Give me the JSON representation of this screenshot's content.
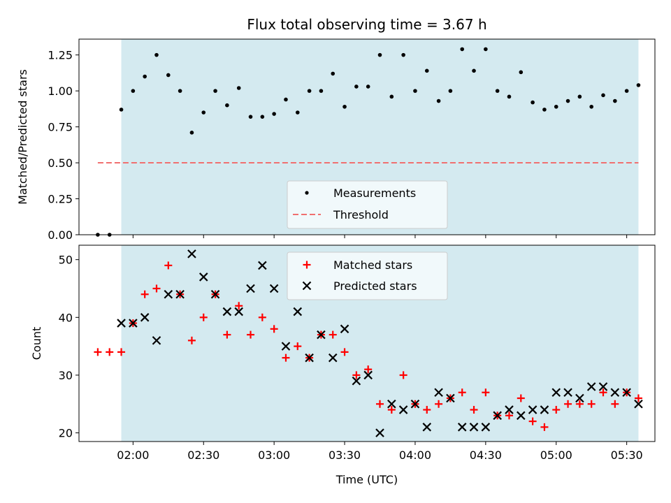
{
  "chart_data": [
    {
      "type": "scatter",
      "title": "Flux total observing time = 3.67 h",
      "xlabel": "",
      "ylabel": "Matched/Predicted stars",
      "xlim": [
        "01:37",
        "05:42"
      ],
      "ylim": [
        0,
        1.36
      ],
      "yticks": [
        0.0,
        0.25,
        0.5,
        0.75,
        1.0,
        1.25
      ],
      "ytick_labels": [
        "0.00",
        "0.25",
        "0.50",
        "0.75",
        "1.00",
        "1.25"
      ],
      "shaded_region": {
        "x_start": "01:55",
        "x_end": "05:35",
        "color": "#d4eaf0"
      },
      "legend": {
        "placement": "lower-center",
        "entries": [
          "Measurements",
          "Threshold"
        ]
      },
      "series": [
        {
          "name": "Measurements",
          "marker": "dot",
          "color": "#000000",
          "x": [
            "01:45",
            "01:50",
            "01:55",
            "02:00",
            "02:05",
            "02:10",
            "02:15",
            "02:20",
            "02:25",
            "02:30",
            "02:35",
            "02:40",
            "02:45",
            "02:50",
            "02:55",
            "03:00",
            "03:05",
            "03:10",
            "03:15",
            "03:20",
            "03:25",
            "03:30",
            "03:35",
            "03:40",
            "03:45",
            "03:50",
            "03:55",
            "04:00",
            "04:05",
            "04:10",
            "04:15",
            "04:20",
            "04:25",
            "04:30",
            "04:35",
            "04:40",
            "04:45",
            "04:50",
            "04:55",
            "05:00",
            "05:05",
            "05:10",
            "05:15",
            "05:20",
            "05:25",
            "05:30",
            "05:35"
          ],
          "y": [
            0.0,
            0.0,
            0.87,
            1.0,
            1.1,
            1.25,
            1.11,
            1.0,
            0.71,
            0.85,
            1.0,
            0.9,
            1.02,
            0.82,
            0.82,
            0.84,
            0.94,
            0.85,
            1.0,
            1.0,
            1.12,
            0.89,
            1.03,
            1.03,
            1.25,
            0.96,
            1.25,
            1.0,
            1.14,
            0.93,
            1.0,
            1.29,
            1.14,
            1.29,
            1.0,
            0.96,
            1.13,
            0.92,
            0.87,
            0.89,
            0.93,
            0.96,
            0.89,
            0.97,
            0.93,
            1.0,
            1.04
          ]
        },
        {
          "name": "Threshold",
          "type": "line",
          "style": "dashed",
          "color": "#f07070",
          "x": [
            "01:45",
            "05:35"
          ],
          "y": [
            0.5,
            0.5
          ]
        }
      ]
    },
    {
      "type": "scatter",
      "title": "",
      "xlabel": "Time (UTC)",
      "ylabel": "Count",
      "xlim": [
        "01:37",
        "05:42"
      ],
      "ylim": [
        18.5,
        52.5
      ],
      "yticks": [
        20,
        30,
        40,
        50
      ],
      "ytick_labels": [
        "20",
        "30",
        "40",
        "50"
      ],
      "xticks": [
        "02:00",
        "02:30",
        "03:00",
        "03:30",
        "04:00",
        "04:30",
        "05:00",
        "05:30"
      ],
      "shaded_region": {
        "x_start": "01:55",
        "x_end": "05:35",
        "color": "#d4eaf0"
      },
      "legend": {
        "placement": "upper-center",
        "entries": [
          "Matched stars",
          "Predicted stars"
        ]
      },
      "series": [
        {
          "name": "Matched stars",
          "marker": "plus",
          "color": "#ff0000",
          "x": [
            "01:45",
            "01:50",
            "01:55",
            "02:00",
            "02:05",
            "02:10",
            "02:15",
            "02:20",
            "02:25",
            "02:30",
            "02:35",
            "02:40",
            "02:45",
            "02:50",
            "02:55",
            "03:00",
            "03:05",
            "03:10",
            "03:15",
            "03:20",
            "03:25",
            "03:30",
            "03:35",
            "03:40",
            "03:45",
            "03:50",
            "03:55",
            "04:00",
            "04:05",
            "04:10",
            "04:15",
            "04:20",
            "04:25",
            "04:30",
            "04:35",
            "04:40",
            "04:45",
            "04:50",
            "04:55",
            "05:00",
            "05:05",
            "05:10",
            "05:15",
            "05:20",
            "05:25",
            "05:30",
            "05:35"
          ],
          "y": [
            34,
            34,
            34,
            39,
            44,
            45,
            49,
            44,
            36,
            40,
            44,
            37,
            42,
            37,
            40,
            38,
            33,
            35,
            33,
            37,
            37,
            34,
            30,
            31,
            25,
            24,
            30,
            25,
            24,
            25,
            26,
            27,
            24,
            27,
            23,
            23,
            26,
            22,
            21,
            24,
            25,
            25,
            25,
            27,
            25,
            27,
            26
          ]
        },
        {
          "name": "Predicted stars",
          "marker": "x",
          "color": "#000000",
          "x": [
            "01:55",
            "02:00",
            "02:05",
            "02:10",
            "02:15",
            "02:20",
            "02:25",
            "02:30",
            "02:35",
            "02:40",
            "02:45",
            "02:50",
            "02:55",
            "03:00",
            "03:05",
            "03:10",
            "03:15",
            "03:20",
            "03:25",
            "03:30",
            "03:35",
            "03:40",
            "03:45",
            "03:50",
            "03:55",
            "04:00",
            "04:05",
            "04:10",
            "04:15",
            "04:20",
            "04:25",
            "04:30",
            "04:35",
            "04:40",
            "04:45",
            "04:50",
            "04:55",
            "05:00",
            "05:05",
            "05:10",
            "05:15",
            "05:20",
            "05:25",
            "05:30",
            "05:35"
          ],
          "y": [
            39,
            39,
            40,
            36,
            44,
            44,
            51,
            47,
            44,
            41,
            41,
            45,
            49,
            45,
            35,
            41,
            33,
            37,
            33,
            38,
            29,
            30,
            20,
            25,
            24,
            25,
            21,
            27,
            26,
            21,
            21,
            21,
            23,
            24,
            23,
            24,
            24,
            27,
            27,
            26,
            28,
            28,
            27,
            27,
            25
          ]
        }
      ]
    }
  ]
}
